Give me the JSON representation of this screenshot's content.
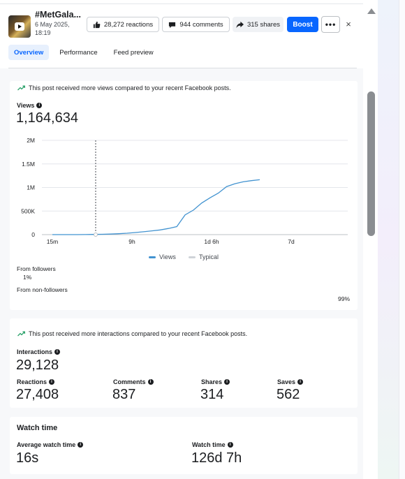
{
  "post": {
    "title": "#MetGala...",
    "date_line1": "6 May 2025,",
    "date_line2": "18:19"
  },
  "actions": {
    "reactions": "28,272 reactions",
    "comments": "944 comments",
    "shares": "315 shares",
    "boost": "Boost",
    "more": "•••",
    "close": "×"
  },
  "tabs": [
    {
      "label": "Overview",
      "active": true
    },
    {
      "label": "Performance",
      "active": false
    },
    {
      "label": "Feed preview",
      "active": false
    }
  ],
  "views_card": {
    "insight": "This post received more views compared to your recent Facebook posts.",
    "label": "Views",
    "value": "1,164,634",
    "from_followers_label": "From followers",
    "from_followers_value": "1%",
    "from_nonfollowers_label": "From non-followers",
    "from_nonfollowers_value": "99%"
  },
  "chart_data": {
    "type": "line",
    "title": "",
    "xlabel": "",
    "ylabel": "",
    "y_ticks": [
      "0",
      "500K",
      "1M",
      "1.5M",
      "2M"
    ],
    "y_tick_values": [
      0,
      500000,
      1000000,
      1500000,
      2000000
    ],
    "x_ticks": [
      "15m",
      "9h",
      "1d 6h",
      "7d"
    ],
    "ylim": [
      0,
      2000000
    ],
    "grid": true,
    "legend_position": "bottom",
    "series": [
      {
        "name": "Views",
        "color": "#4293d0",
        "x": [
          0,
          1,
          2,
          3,
          4,
          5,
          6,
          7,
          8,
          9,
          10,
          11,
          12,
          13,
          14,
          15,
          16,
          17,
          18,
          19,
          20,
          21,
          22,
          23,
          24,
          25
        ],
        "values": [
          0,
          0,
          0,
          0,
          2000,
          5000,
          8000,
          12000,
          20000,
          30000,
          45000,
          60000,
          80000,
          100000,
          130000,
          170000,
          420000,
          520000,
          670000,
          780000,
          880000,
          1020000,
          1080000,
          1120000,
          1145000,
          1164634
        ]
      },
      {
        "name": "Typical",
        "color": "#cfd3d8",
        "x": [],
        "values": []
      }
    ],
    "marker": {
      "x_label_index": 1,
      "note": "dashed vertical line"
    }
  },
  "interactions_card": {
    "insight": "This post received more interactions compared to your recent Facebook posts.",
    "interactions_label": "Interactions",
    "interactions_value": "29,128",
    "metrics": [
      {
        "label": "Reactions",
        "value": "27,408"
      },
      {
        "label": "Comments",
        "value": "837"
      },
      {
        "label": "Shares",
        "value": "314"
      },
      {
        "label": "Saves",
        "value": "562"
      }
    ]
  },
  "watch_card": {
    "title": "Watch time",
    "avg_label": "Average watch time",
    "avg_value": "16s",
    "total_label": "Watch time",
    "total_value": "126d 7h"
  },
  "colors": {
    "accent": "#0866ff",
    "series_views": "#4293d0",
    "insight_arrow": "#2ca26b"
  }
}
